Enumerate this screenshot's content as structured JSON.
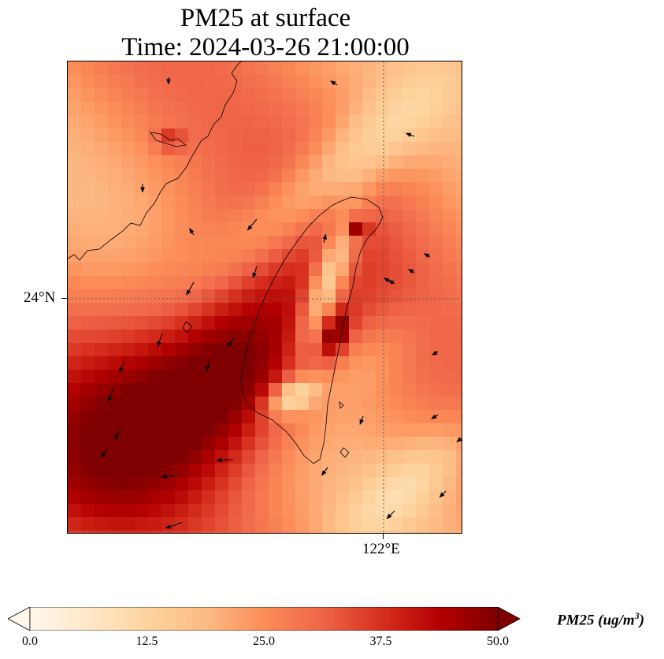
{
  "title": {
    "line1": "PM25 at surface",
    "line2": "Time: 2024-03-26 21:00:00"
  },
  "axes": {
    "lat_label": "24°N",
    "lon_label": "122°E"
  },
  "colorbar": {
    "label_main": "PM25 (ug/m",
    "label_sup": "3",
    "label_close": ")",
    "ticks": [
      "0.0",
      "12.5",
      "25.0",
      "37.5",
      "50.0"
    ],
    "range": [
      0,
      50
    ],
    "colormap": "OrRd",
    "extend": "both",
    "colors": [
      "#fff7ec",
      "#fee8c8",
      "#fdd49e",
      "#fdbb84",
      "#fc8d59",
      "#ef6548",
      "#d7301f",
      "#b30000",
      "#7f0000"
    ]
  },
  "map": {
    "projection": "lat-lon",
    "gridlines": "dotted",
    "features": [
      "coastline",
      "wind-vectors",
      "pm25-field"
    ],
    "high_regions": [
      "Taiwan Strait",
      "southwest of Taiwan"
    ],
    "low_regions": [
      "central mountains of Taiwan",
      "northeast offshore"
    ]
  }
}
